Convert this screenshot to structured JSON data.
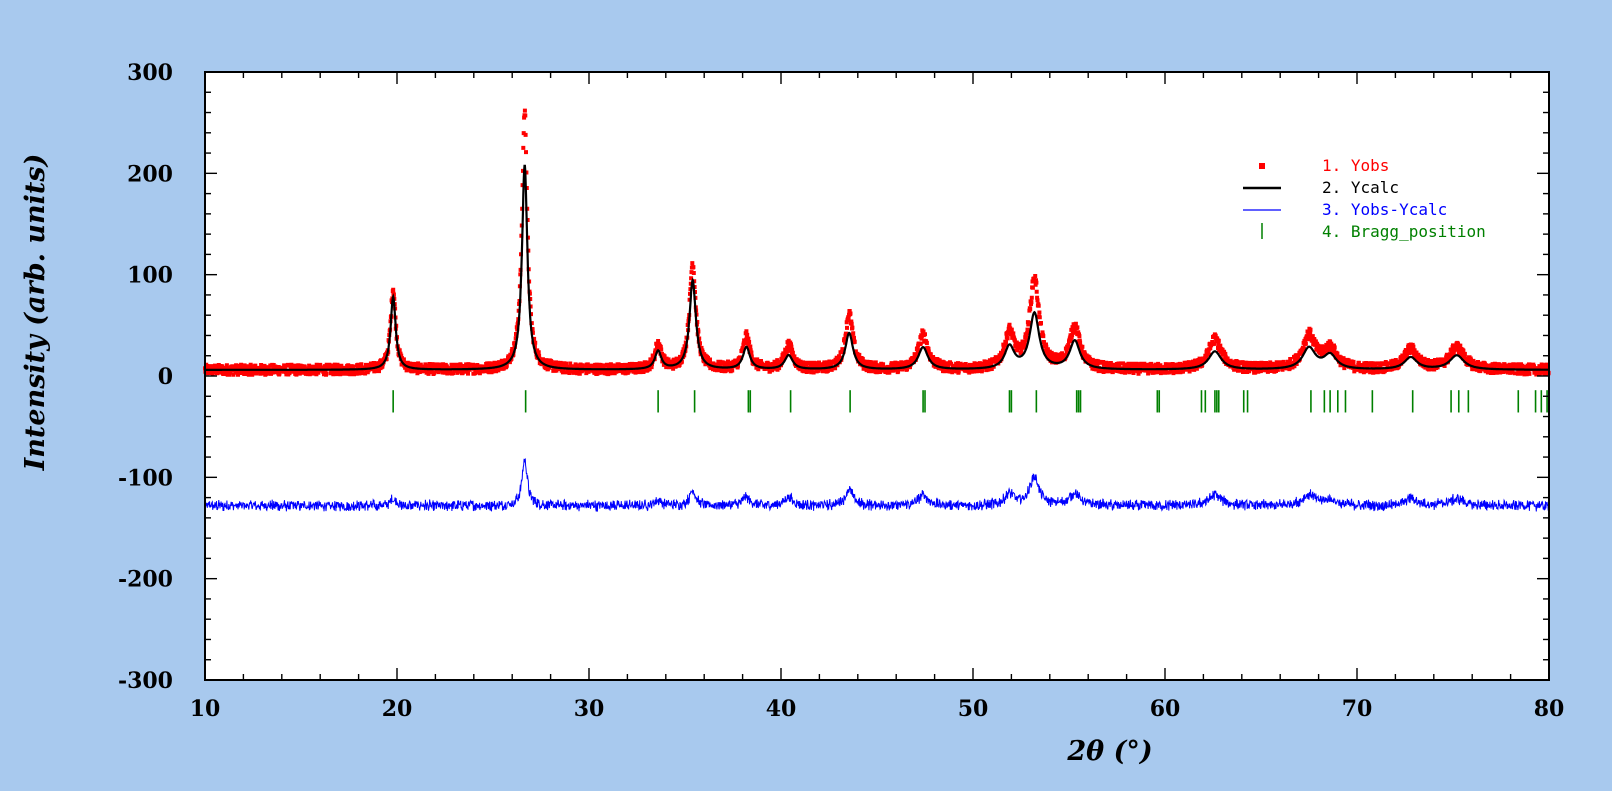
{
  "chart_data": {
    "type": "line",
    "title": "",
    "xlabel": "2θ (°)",
    "ylabel": "Intensity (arb. units)",
    "xlim": [
      10,
      80
    ],
    "ylim": [
      -300,
      300
    ],
    "x_ticks": [
      10,
      20,
      30,
      40,
      50,
      60,
      70,
      80
    ],
    "y_ticks": [
      300,
      200,
      100,
      0,
      -100,
      -200,
      -300
    ],
    "x_tick_labels": [
      "10",
      "20",
      "30",
      "40",
      "50",
      "60",
      "70",
      "80"
    ],
    "y_tick_labels": [
      "300",
      "200",
      "100",
      "0",
      "-100",
      "-200",
      "-300"
    ],
    "background": 6,
    "diff_offset": -128,
    "peaks": [
      {
        "x": 19.8,
        "yobs": 80,
        "ycalc": 72,
        "w": 0.16
      },
      {
        "x": 26.65,
        "yobs": 255,
        "ycalc": 202,
        "w": 0.17
      },
      {
        "x": 33.6,
        "yobs": 25,
        "ycalc": 18,
        "w": 0.2
      },
      {
        "x": 35.4,
        "yobs": 105,
        "ycalc": 88,
        "w": 0.2
      },
      {
        "x": 38.2,
        "yobs": 32,
        "ycalc": 22,
        "w": 0.22
      },
      {
        "x": 40.4,
        "yobs": 24,
        "ycalc": 14,
        "w": 0.25
      },
      {
        "x": 43.55,
        "yobs": 55,
        "ycalc": 36,
        "w": 0.24
      },
      {
        "x": 47.4,
        "yobs": 34,
        "ycalc": 22,
        "w": 0.3
      },
      {
        "x": 51.9,
        "yobs": 35,
        "ycalc": 22,
        "w": 0.3
      },
      {
        "x": 53.2,
        "yobs": 88,
        "ycalc": 55,
        "w": 0.3
      },
      {
        "x": 55.3,
        "yobs": 42,
        "ycalc": 28,
        "w": 0.32
      },
      {
        "x": 62.6,
        "yobs": 30,
        "ycalc": 18,
        "w": 0.4
      },
      {
        "x": 67.5,
        "yobs": 33,
        "ycalc": 21,
        "w": 0.4
      },
      {
        "x": 68.6,
        "yobs": 20,
        "ycalc": 14,
        "w": 0.4
      },
      {
        "x": 72.8,
        "yobs": 20,
        "ycalc": 12,
        "w": 0.4
      },
      {
        "x": 75.2,
        "yobs": 22,
        "ycalc": 14,
        "w": 0.45
      }
    ],
    "bragg_positions": [
      19.8,
      26.7,
      33.6,
      35.5,
      38.3,
      38.4,
      40.5,
      43.6,
      47.4,
      47.5,
      51.9,
      52.0,
      53.3,
      55.4,
      55.5,
      55.6,
      59.6,
      59.7,
      61.9,
      62.1,
      62.6,
      62.7,
      62.8,
      64.1,
      64.3,
      67.6,
      68.3,
      68.6,
      69.0,
      69.4,
      70.8,
      72.9,
      74.9,
      75.3,
      75.8,
      78.4,
      79.3,
      79.6,
      79.9
    ],
    "series": [
      {
        "name": "1. Yobs",
        "color": "#ff0000",
        "style": "points"
      },
      {
        "name": "2. Ycalc",
        "color": "#000000",
        "style": "line"
      },
      {
        "name": "3. Yobs-Ycalc",
        "color": "#0000ff",
        "style": "line"
      },
      {
        "name": "4. Bragg_position",
        "color": "#008000",
        "style": "ticks"
      }
    ],
    "legend_position": "top-right",
    "grid": false
  }
}
